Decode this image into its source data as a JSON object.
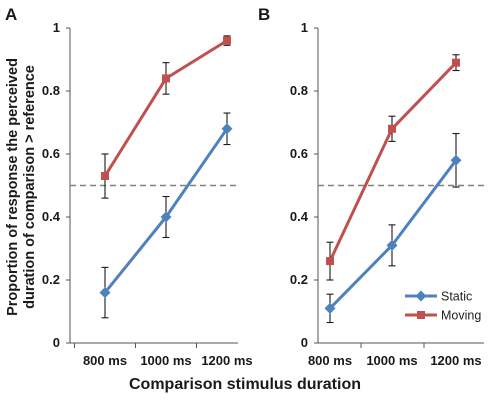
{
  "figure": {
    "ylabel_lines": [
      "Proportion of response the perceived",
      "duration of  comparison > reference"
    ],
    "xlabel": "Comparison stimulus duration"
  },
  "chart_data": [
    {
      "type": "line",
      "panel": "A",
      "categories": [
        "800 ms",
        "1000 ms",
        "1200 ms"
      ],
      "ylim": [
        0,
        1
      ],
      "yticks": [
        "0",
        "0.2",
        "0.4",
        "0.6",
        "0.8",
        "1"
      ],
      "reference_line": 0.5,
      "series": [
        {
          "name": "Moving",
          "color": "#c0504d",
          "marker": "square",
          "values": [
            0.53,
            0.84,
            0.96
          ],
          "err": [
            0.07,
            0.05,
            0.015
          ]
        },
        {
          "name": "Static",
          "color": "#4f81bd",
          "marker": "diamond",
          "values": [
            0.16,
            0.4,
            0.68
          ],
          "err": [
            0.08,
            0.065,
            0.05
          ]
        }
      ]
    },
    {
      "type": "line",
      "panel": "B",
      "categories": [
        "800 ms",
        "1000 ms",
        "1200 ms"
      ],
      "ylim": [
        0,
        1
      ],
      "yticks": [
        "0",
        "0.2",
        "0.4",
        "0.6",
        "0.8",
        "1"
      ],
      "reference_line": 0.5,
      "legend_position": "bottom-right",
      "series": [
        {
          "name": "Static",
          "color": "#4f81bd",
          "marker": "diamond",
          "values": [
            0.11,
            0.31,
            0.58
          ],
          "err": [
            0.045,
            0.065,
            0.085
          ]
        },
        {
          "name": "Moving",
          "color": "#c0504d",
          "marker": "square",
          "values": [
            0.26,
            0.68,
            0.89
          ],
          "err": [
            0.06,
            0.04,
            0.025
          ]
        }
      ]
    }
  ]
}
